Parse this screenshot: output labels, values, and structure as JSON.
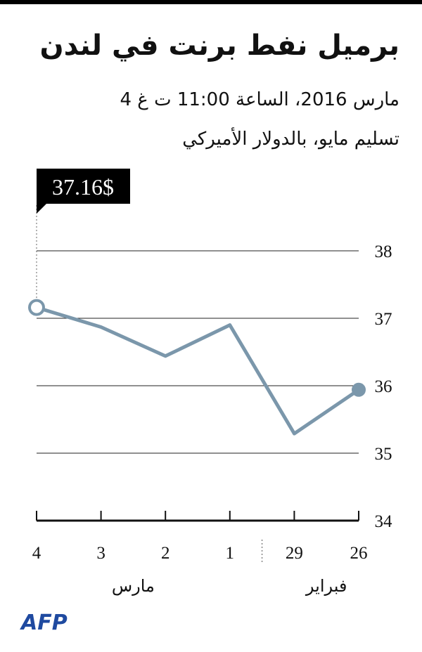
{
  "chart_data": {
    "type": "line",
    "title": "برميل نفط برنت في لندن",
    "subtitle": [
      "4 مارس 2016، الساعة 11:00 ت غ",
      "تسليم مايو، بالدولار الأميركي"
    ],
    "categories": [
      "26",
      "29",
      "1",
      "2",
      "3",
      "4"
    ],
    "x_groups": [
      "فبراير",
      "مارس"
    ],
    "x_reversed": true,
    "series": [
      {
        "color": "#7b97ab",
        "values": [
          35.94,
          35.29,
          36.9,
          36.44,
          36.87,
          37.16
        ],
        "value_labels": [
          null,
          null,
          null,
          null,
          null,
          "37.16$"
        ]
      }
    ],
    "ylim": [
      34,
      38.5
    ],
    "yticks": [
      34,
      35,
      36,
      37,
      38
    ],
    "grid": true,
    "source": "AFP"
  }
}
